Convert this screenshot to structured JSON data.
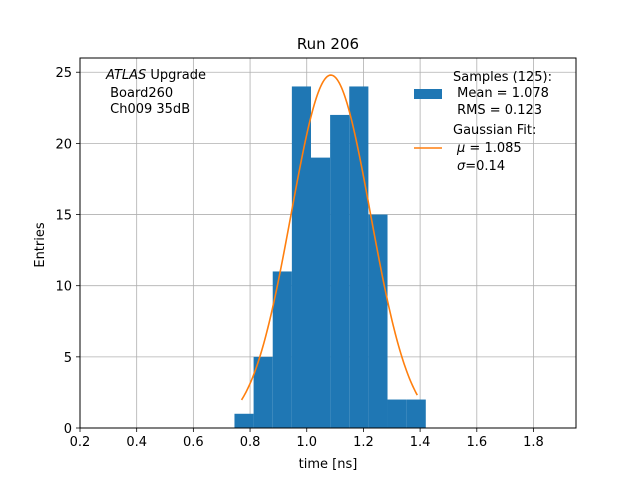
{
  "chart_data": {
    "type": "bar",
    "title": "Run 206",
    "xlabel": "time [ns]",
    "ylabel": "Entries",
    "xlim": [
      0.2,
      1.95
    ],
    "ylim": [
      0,
      26
    ],
    "grid": true,
    "x_ticks": [
      0.2,
      0.4,
      0.6,
      0.8,
      1.0,
      1.2,
      1.4,
      1.6,
      1.8
    ],
    "x_tick_labels": [
      "0.2",
      "0.4",
      "0.6",
      "0.8",
      "1.0",
      "1.2",
      "1.4",
      "1.6",
      "1.8"
    ],
    "y_ticks": [
      0,
      5,
      10,
      15,
      20,
      25
    ],
    "y_tick_labels": [
      "0",
      "5",
      "10",
      "15",
      "20",
      "25"
    ],
    "annotation": {
      "line1_italic": "ATLAS",
      "line1_rest": " Upgrade",
      "line2": " Board260",
      "line3": " Ch009 35dB"
    },
    "histogram": {
      "name": "Samples (125):",
      "color": "#1f77b4",
      "bin_edges": [
        0.745,
        0.8125,
        0.88,
        0.9475,
        1.015,
        1.0825,
        1.15,
        1.2175,
        1.285,
        1.3525,
        1.42
      ],
      "counts": [
        1,
        5,
        11,
        24,
        19,
        22,
        24,
        15,
        2,
        2
      ]
    },
    "fit": {
      "name": "Gaussian Fit:",
      "color": "#ff7f0e",
      "amplitude": 24.8,
      "mu": 1.085,
      "sigma": 0.14,
      "x_range": [
        0.77,
        1.39
      ]
    },
    "legend": {
      "position": "top-right",
      "hist_line1": "Samples (125):",
      "hist_line2": " Mean = 1.078",
      "hist_line3": " RMS = 0.123",
      "fit_line1": "Gaussian Fit:",
      "fit_line2_sym": "μ",
      "fit_line2_rest": " = 1.085",
      "fit_line3_sym": "σ",
      "fit_line3_rest": "=0.14"
    }
  }
}
